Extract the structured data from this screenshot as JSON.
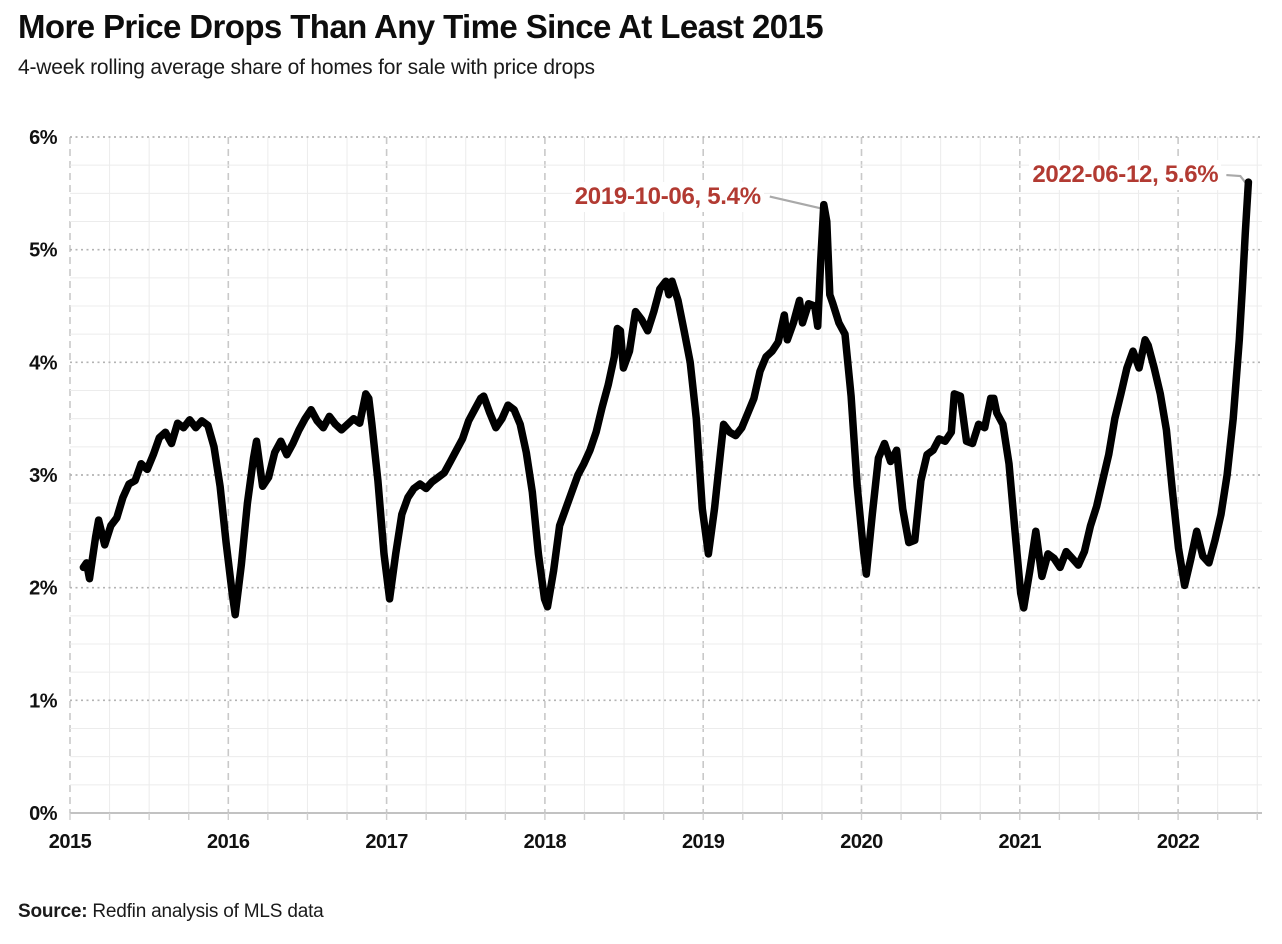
{
  "chart": {
    "title": "More Price Drops Than Any Time Since At Least 2015",
    "subtitle": "4-week rolling average share of homes for sale with price drops",
    "source_label": "Source:",
    "source_text": "Redfin analysis of MLS data"
  },
  "colors": {
    "line": "#000000",
    "annotation": "#b23a32",
    "leader": "#a9a9a9",
    "grid_major_dotted": "#b3b3b3",
    "grid_minor": "#ececec",
    "year_dashed": "#c9c9c9",
    "axis": "#c2c2c2",
    "tick_text": "#111111"
  },
  "chart_data": {
    "type": "line",
    "title": "More Price Drops Than Any Time Since At Least 2015",
    "subtitle": "4-week rolling average share of homes for sale with price drops",
    "xlabel": "",
    "ylabel": "share of homes for sale with price drops (%)",
    "ylim": [
      0,
      6
    ],
    "y_ticks": [
      "0%",
      "1%",
      "2%",
      "3%",
      "4%",
      "5%",
      "6%"
    ],
    "x_ticks": [
      "2015",
      "2016",
      "2017",
      "2018",
      "2019",
      "2020",
      "2021",
      "2022"
    ],
    "grid": true,
    "legend_position": "none",
    "series": [
      {
        "name": "4-week rolling average share of homes for sale with price drops",
        "points": [
          [
            "2015-02-01",
            2.18
          ],
          [
            "2015-02-08",
            2.22
          ],
          [
            "2015-02-15",
            2.08
          ],
          [
            "2015-03-01",
            2.45
          ],
          [
            "2015-03-08",
            2.6
          ],
          [
            "2015-03-22",
            2.38
          ],
          [
            "2015-04-05",
            2.55
          ],
          [
            "2015-04-19",
            2.62
          ],
          [
            "2015-05-03",
            2.8
          ],
          [
            "2015-05-17",
            2.92
          ],
          [
            "2015-05-31",
            2.95
          ],
          [
            "2015-06-14",
            3.1
          ],
          [
            "2015-06-28",
            3.05
          ],
          [
            "2015-07-12",
            3.18
          ],
          [
            "2015-07-26",
            3.33
          ],
          [
            "2015-08-09",
            3.38
          ],
          [
            "2015-08-23",
            3.28
          ],
          [
            "2015-09-06",
            3.46
          ],
          [
            "2015-09-20",
            3.42
          ],
          [
            "2015-10-04",
            3.49
          ],
          [
            "2015-10-18",
            3.42
          ],
          [
            "2015-11-01",
            3.48
          ],
          [
            "2015-11-15",
            3.44
          ],
          [
            "2015-11-29",
            3.25
          ],
          [
            "2015-12-13",
            2.9
          ],
          [
            "2015-12-27",
            2.4
          ],
          [
            "2016-01-10",
            1.95
          ],
          [
            "2016-01-17",
            1.76
          ],
          [
            "2016-01-31",
            2.2
          ],
          [
            "2016-02-14",
            2.75
          ],
          [
            "2016-02-28",
            3.15
          ],
          [
            "2016-03-06",
            3.3
          ],
          [
            "2016-03-20",
            2.9
          ],
          [
            "2016-04-03",
            2.98
          ],
          [
            "2016-04-17",
            3.2
          ],
          [
            "2016-05-01",
            3.3
          ],
          [
            "2016-05-15",
            3.18
          ],
          [
            "2016-05-29",
            3.28
          ],
          [
            "2016-06-12",
            3.4
          ],
          [
            "2016-06-26",
            3.5
          ],
          [
            "2016-07-10",
            3.58
          ],
          [
            "2016-07-24",
            3.48
          ],
          [
            "2016-08-07",
            3.42
          ],
          [
            "2016-08-21",
            3.52
          ],
          [
            "2016-09-04",
            3.45
          ],
          [
            "2016-09-18",
            3.4
          ],
          [
            "2016-10-02",
            3.45
          ],
          [
            "2016-10-16",
            3.5
          ],
          [
            "2016-10-30",
            3.46
          ],
          [
            "2016-11-13",
            3.72
          ],
          [
            "2016-11-20",
            3.68
          ],
          [
            "2016-11-27",
            3.45
          ],
          [
            "2016-12-11",
            2.95
          ],
          [
            "2016-12-25",
            2.3
          ],
          [
            "2017-01-08",
            1.9
          ],
          [
            "2017-01-22",
            2.3
          ],
          [
            "2017-02-05",
            2.65
          ],
          [
            "2017-02-19",
            2.8
          ],
          [
            "2017-03-05",
            2.88
          ],
          [
            "2017-03-19",
            2.92
          ],
          [
            "2017-04-02",
            2.88
          ],
          [
            "2017-04-16",
            2.94
          ],
          [
            "2017-04-30",
            2.98
          ],
          [
            "2017-05-14",
            3.02
          ],
          [
            "2017-05-28",
            3.12
          ],
          [
            "2017-06-11",
            3.22
          ],
          [
            "2017-06-25",
            3.32
          ],
          [
            "2017-07-09",
            3.48
          ],
          [
            "2017-07-23",
            3.58
          ],
          [
            "2017-08-06",
            3.68
          ],
          [
            "2017-08-13",
            3.7
          ],
          [
            "2017-08-27",
            3.55
          ],
          [
            "2017-09-10",
            3.42
          ],
          [
            "2017-09-24",
            3.5
          ],
          [
            "2017-10-08",
            3.62
          ],
          [
            "2017-10-22",
            3.58
          ],
          [
            "2017-11-05",
            3.45
          ],
          [
            "2017-11-19",
            3.2
          ],
          [
            "2017-12-03",
            2.85
          ],
          [
            "2017-12-17",
            2.3
          ],
          [
            "2017-12-31",
            1.9
          ],
          [
            "2018-01-07",
            1.83
          ],
          [
            "2018-01-21",
            2.15
          ],
          [
            "2018-02-04",
            2.55
          ],
          [
            "2018-02-18",
            2.7
          ],
          [
            "2018-03-04",
            2.85
          ],
          [
            "2018-03-18",
            3.0
          ],
          [
            "2018-04-01",
            3.1
          ],
          [
            "2018-04-15",
            3.22
          ],
          [
            "2018-04-29",
            3.38
          ],
          [
            "2018-05-13",
            3.6
          ],
          [
            "2018-05-27",
            3.8
          ],
          [
            "2018-06-10",
            4.05
          ],
          [
            "2018-06-17",
            4.3
          ],
          [
            "2018-06-24",
            4.28
          ],
          [
            "2018-07-01",
            3.95
          ],
          [
            "2018-07-15",
            4.1
          ],
          [
            "2018-07-29",
            4.45
          ],
          [
            "2018-08-12",
            4.38
          ],
          [
            "2018-08-26",
            4.28
          ],
          [
            "2018-09-09",
            4.45
          ],
          [
            "2018-09-23",
            4.65
          ],
          [
            "2018-10-07",
            4.72
          ],
          [
            "2018-10-14",
            4.6
          ],
          [
            "2018-10-21",
            4.72
          ],
          [
            "2018-11-04",
            4.55
          ],
          [
            "2018-11-18",
            4.28
          ],
          [
            "2018-12-02",
            4.0
          ],
          [
            "2018-12-16",
            3.5
          ],
          [
            "2018-12-30",
            2.7
          ],
          [
            "2019-01-13",
            2.3
          ],
          [
            "2019-01-27",
            2.7
          ],
          [
            "2019-02-10",
            3.2
          ],
          [
            "2019-02-17",
            3.45
          ],
          [
            "2019-03-03",
            3.38
          ],
          [
            "2019-03-17",
            3.35
          ],
          [
            "2019-03-31",
            3.42
          ],
          [
            "2019-04-14",
            3.55
          ],
          [
            "2019-04-28",
            3.68
          ],
          [
            "2019-05-12",
            3.92
          ],
          [
            "2019-05-26",
            4.05
          ],
          [
            "2019-06-09",
            4.1
          ],
          [
            "2019-06-23",
            4.18
          ],
          [
            "2019-07-07",
            4.42
          ],
          [
            "2019-07-14",
            4.2
          ],
          [
            "2019-07-28",
            4.35
          ],
          [
            "2019-08-11",
            4.55
          ],
          [
            "2019-08-18",
            4.35
          ],
          [
            "2019-09-01",
            4.52
          ],
          [
            "2019-09-15",
            4.5
          ],
          [
            "2019-09-22",
            4.32
          ],
          [
            "2019-09-29",
            4.9
          ],
          [
            "2019-10-06",
            5.4
          ],
          [
            "2019-10-13",
            5.25
          ],
          [
            "2019-10-20",
            4.6
          ],
          [
            "2019-10-27",
            4.52
          ],
          [
            "2019-11-10",
            4.35
          ],
          [
            "2019-11-24",
            4.25
          ],
          [
            "2019-12-08",
            3.7
          ],
          [
            "2019-12-22",
            2.9
          ],
          [
            "2020-01-05",
            2.35
          ],
          [
            "2020-01-12",
            2.12
          ],
          [
            "2020-01-26",
            2.65
          ],
          [
            "2020-02-09",
            3.15
          ],
          [
            "2020-02-23",
            3.28
          ],
          [
            "2020-03-08",
            3.12
          ],
          [
            "2020-03-22",
            3.22
          ],
          [
            "2020-04-05",
            2.7
          ],
          [
            "2020-04-19",
            2.4
          ],
          [
            "2020-05-03",
            2.42
          ],
          [
            "2020-05-17",
            2.95
          ],
          [
            "2020-05-31",
            3.18
          ],
          [
            "2020-06-14",
            3.22
          ],
          [
            "2020-06-28",
            3.32
          ],
          [
            "2020-07-12",
            3.3
          ],
          [
            "2020-07-26",
            3.38
          ],
          [
            "2020-08-02",
            3.72
          ],
          [
            "2020-08-16",
            3.7
          ],
          [
            "2020-08-30",
            3.3
          ],
          [
            "2020-09-13",
            3.28
          ],
          [
            "2020-09-27",
            3.45
          ],
          [
            "2020-10-11",
            3.42
          ],
          [
            "2020-10-25",
            3.68
          ],
          [
            "2020-11-01",
            3.68
          ],
          [
            "2020-11-08",
            3.55
          ],
          [
            "2020-11-22",
            3.45
          ],
          [
            "2020-12-06",
            3.1
          ],
          [
            "2020-12-20",
            2.5
          ],
          [
            "2021-01-03",
            1.95
          ],
          [
            "2021-01-10",
            1.82
          ],
          [
            "2021-01-24",
            2.15
          ],
          [
            "2021-02-07",
            2.5
          ],
          [
            "2021-02-21",
            2.1
          ],
          [
            "2021-03-07",
            2.3
          ],
          [
            "2021-03-21",
            2.26
          ],
          [
            "2021-04-04",
            2.18
          ],
          [
            "2021-04-18",
            2.32
          ],
          [
            "2021-05-02",
            2.26
          ],
          [
            "2021-05-16",
            2.2
          ],
          [
            "2021-05-30",
            2.32
          ],
          [
            "2021-06-13",
            2.55
          ],
          [
            "2021-06-27",
            2.72
          ],
          [
            "2021-07-11",
            2.95
          ],
          [
            "2021-07-25",
            3.18
          ],
          [
            "2021-08-08",
            3.5
          ],
          [
            "2021-08-22",
            3.72
          ],
          [
            "2021-09-05",
            3.95
          ],
          [
            "2021-09-19",
            4.1
          ],
          [
            "2021-10-03",
            3.95
          ],
          [
            "2021-10-17",
            4.2
          ],
          [
            "2021-10-24",
            4.15
          ],
          [
            "2021-11-07",
            3.95
          ],
          [
            "2021-11-21",
            3.72
          ],
          [
            "2021-12-05",
            3.4
          ],
          [
            "2021-12-19",
            2.85
          ],
          [
            "2022-01-02",
            2.35
          ],
          [
            "2022-01-16",
            2.02
          ],
          [
            "2022-01-30",
            2.25
          ],
          [
            "2022-02-13",
            2.5
          ],
          [
            "2022-02-27",
            2.28
          ],
          [
            "2022-03-13",
            2.22
          ],
          [
            "2022-03-27",
            2.42
          ],
          [
            "2022-04-10",
            2.65
          ],
          [
            "2022-04-24",
            3.0
          ],
          [
            "2022-05-08",
            3.5
          ],
          [
            "2022-05-22",
            4.2
          ],
          [
            "2022-05-29",
            4.65
          ],
          [
            "2022-06-05",
            5.15
          ],
          [
            "2022-06-12",
            5.6
          ]
        ]
      }
    ],
    "annotations": [
      {
        "label": "2019-10-06, 5.4%",
        "date": "2019-10-06",
        "value": 5.4,
        "offset": [
          -60,
          -8
        ],
        "bend": false
      },
      {
        "label": "2022-06-12, 5.6%",
        "date": "2022-06-12",
        "value": 5.6,
        "offset": [
          -27,
          -7
        ],
        "bend": true
      }
    ]
  }
}
